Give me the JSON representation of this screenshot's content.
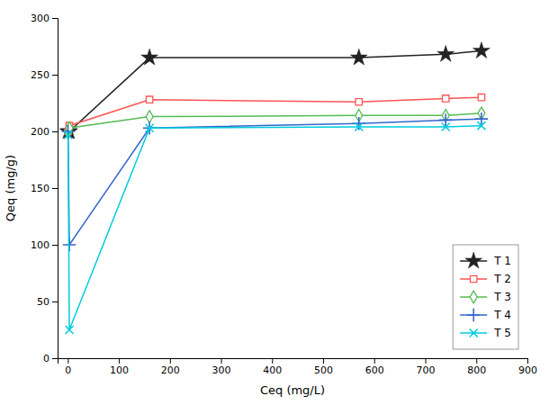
{
  "chart_data": {
    "type": "line",
    "xlabel": "Ceq (mg/L)",
    "ylabel": "Qeq (mg/g)",
    "x": [
      0.5,
      3,
      160,
      570,
      740,
      810
    ],
    "series": [
      {
        "name": "T 1",
        "color": "#222222",
        "marker": "star",
        "values": [
          200,
          200,
          265,
          265,
          268,
          271
        ]
      },
      {
        "name": "T 2",
        "color": "#ff5555",
        "marker": "square",
        "values": [
          200,
          205,
          228,
          226,
          229,
          230
        ]
      },
      {
        "name": "T 3",
        "color": "#55bb55",
        "marker": "diamond",
        "values": [
          199,
          203,
          213,
          214,
          214,
          216
        ]
      },
      {
        "name": "T 4",
        "color": "#3366cc",
        "marker": "plus",
        "values": [
          200,
          100,
          203,
          207,
          210,
          211
        ]
      },
      {
        "name": "T 5",
        "color": "#00ccdd",
        "marker": "x",
        "values": [
          197,
          25,
          203,
          204,
          204,
          205
        ]
      }
    ],
    "xlim": [
      -20,
      900
    ],
    "ylim": [
      0,
      300
    ],
    "xticks": [
      0,
      100,
      200,
      300,
      400,
      500,
      600,
      700,
      800,
      900
    ],
    "yticks": [
      0,
      50,
      100,
      150,
      200,
      250,
      300
    ],
    "legend": "lower right",
    "grid": false
  }
}
